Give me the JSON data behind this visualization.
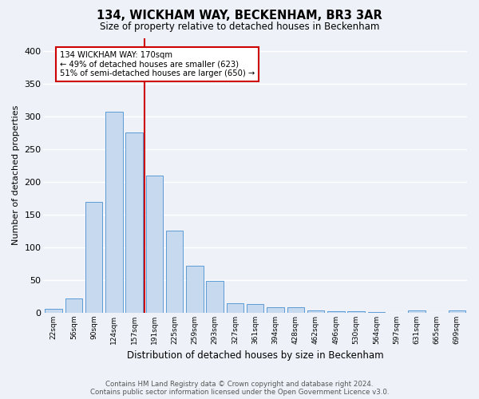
{
  "title": "134, WICKHAM WAY, BECKENHAM, BR3 3AR",
  "subtitle": "Size of property relative to detached houses in Beckenham",
  "xlabel": "Distribution of detached houses by size in Beckenham",
  "ylabel": "Number of detached properties",
  "bin_labels": [
    "22sqm",
    "56sqm",
    "90sqm",
    "124sqm",
    "157sqm",
    "191sqm",
    "225sqm",
    "259sqm",
    "293sqm",
    "327sqm",
    "361sqm",
    "394sqm",
    "428sqm",
    "462sqm",
    "496sqm",
    "530sqm",
    "564sqm",
    "597sqm",
    "631sqm",
    "665sqm",
    "699sqm"
  ],
  "bar_heights": [
    6,
    22,
    170,
    307,
    275,
    210,
    125,
    72,
    49,
    15,
    13,
    8,
    8,
    4,
    2,
    2,
    1,
    0,
    4,
    0,
    4
  ],
  "bar_color": "#c6d9ee",
  "bar_edge_color": "#5b9bd5",
  "vline_x": 4.5,
  "vline_color": "#cc0000",
  "annotation_text": "134 WICKHAM WAY: 170sqm\n← 49% of detached houses are smaller (623)\n51% of semi-detached houses are larger (650) →",
  "annotation_box_color": "#ffffff",
  "annotation_box_edge": "#cc0000",
  "ylim": [
    0,
    420
  ],
  "yticks": [
    0,
    50,
    100,
    150,
    200,
    250,
    300,
    350,
    400
  ],
  "footer1": "Contains HM Land Registry data © Crown copyright and database right 2024.",
  "footer2": "Contains public sector information licensed under the Open Government Licence v3.0.",
  "background_color": "#eef2f8",
  "plot_bg_color": "#eef2f8",
  "grid_color": "#ffffff"
}
